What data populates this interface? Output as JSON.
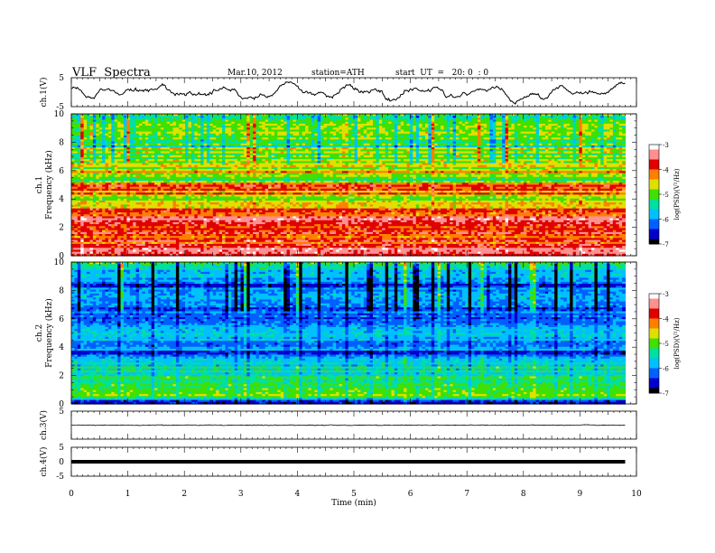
{
  "header": {
    "title": "VLF  Spectra",
    "date": "Mar.10, 2012",
    "station": "station=ATH",
    "start": "start  UT  =   20: 0  : 0"
  },
  "colors": {
    "ramp": [
      "#000000",
      "#0000cc",
      "#0060ff",
      "#00c0ff",
      "#00e0a0",
      "#40e000",
      "#e0e000",
      "#ff8000",
      "#e00000",
      "#ff9090",
      "#ffffff"
    ]
  },
  "chart_data": [
    {
      "type": "line",
      "id": "ch1-waveform",
      "ylabel": "ch.1(V)",
      "ylim": [
        -5,
        5
      ],
      "yticks": [
        "5",
        "-5"
      ],
      "xlim": [
        0,
        10
      ],
      "trace_amplitude_v": 3.5
    },
    {
      "type": "heatmap",
      "id": "ch1-spectrogram",
      "ylabel_top": "ch.1",
      "ylabel": "Frequency  (kHz)",
      "ylim": [
        0,
        10
      ],
      "yticks": [
        "0",
        "2",
        "4",
        "6",
        "8",
        "10"
      ],
      "xlim": [
        0,
        9.8
      ],
      "colorbar": {
        "label": "log(PSD)(V²/Hz)",
        "range": [
          -7,
          -3
        ],
        "ticks": [
          "-3",
          "-4",
          "-5",
          "-6",
          "-7"
        ]
      },
      "mean_log_psd_by_freq": [
        {
          "f": 0.3,
          "v": -3.4
        },
        {
          "f": 1.0,
          "v": -3.8
        },
        {
          "f": 1.8,
          "v": -4.0
        },
        {
          "f": 2.6,
          "v": -3.6
        },
        {
          "f": 3.2,
          "v": -4.2
        },
        {
          "f": 4.0,
          "v": -4.6
        },
        {
          "f": 4.8,
          "v": -3.8
        },
        {
          "f": 5.5,
          "v": -5.0
        },
        {
          "f": 6.0,
          "v": -4.5
        },
        {
          "f": 7.0,
          "v": -5.0
        },
        {
          "f": 8.5,
          "v": -5.1
        },
        {
          "f": 9.6,
          "v": -5.0
        }
      ]
    },
    {
      "type": "heatmap",
      "id": "ch2-spectrogram",
      "ylabel_top": "ch.2",
      "ylabel": "Frequency  (kHz)",
      "ylim": [
        0,
        10
      ],
      "yticks": [
        "0",
        "2",
        "4",
        "6",
        "8",
        "10"
      ],
      "xlim": [
        0,
        9.8
      ],
      "colorbar": {
        "label": "log(PSD)(V²/Hz)",
        "range": [
          -7,
          -3
        ],
        "ticks": [
          "-3",
          "-4",
          "-5",
          "-6",
          "-7"
        ]
      },
      "mean_log_psd_by_freq": [
        {
          "f": 0.1,
          "v": -6.8
        },
        {
          "f": 0.5,
          "v": -4.8
        },
        {
          "f": 1.2,
          "v": -5.1
        },
        {
          "f": 2.0,
          "v": -5.4
        },
        {
          "f": 3.0,
          "v": -5.6
        },
        {
          "f": 3.6,
          "v": -6.2
        },
        {
          "f": 4.4,
          "v": -6.0
        },
        {
          "f": 5.0,
          "v": -5.7
        },
        {
          "f": 5.8,
          "v": -6.1
        },
        {
          "f": 6.6,
          "v": -6.3
        },
        {
          "f": 7.5,
          "v": -6.0
        },
        {
          "f": 8.5,
          "v": -6.2
        },
        {
          "f": 9.6,
          "v": -5.4
        }
      ]
    },
    {
      "type": "line",
      "id": "ch3-waveform",
      "ylabel": "ch.3(V)",
      "ylim": [
        -5,
        5
      ],
      "yticks": [
        "5"
      ],
      "xlim": [
        0,
        10
      ],
      "trace_level_v": 0
    },
    {
      "type": "line",
      "id": "ch4-waveform",
      "ylabel": "ch.4(V)",
      "ylim": [
        -5,
        5
      ],
      "yticks": [
        "5",
        "0",
        "-5"
      ],
      "xlim": [
        0,
        10
      ],
      "trace_level_v": 0
    }
  ],
  "xaxis": {
    "label": "Time  (min)",
    "ticks": [
      "0",
      "1",
      "2",
      "3",
      "4",
      "5",
      "6",
      "7",
      "8",
      "9",
      "10"
    ],
    "range": [
      0,
      10
    ]
  }
}
